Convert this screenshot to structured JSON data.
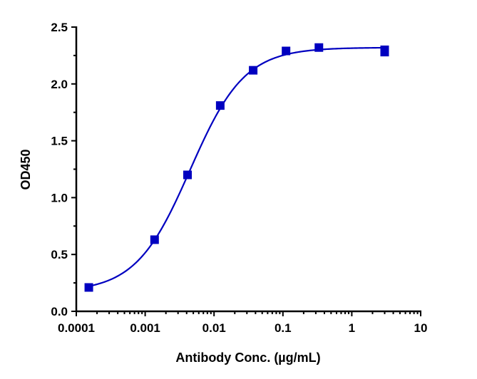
{
  "chart_data": {
    "type": "scatter",
    "title": "",
    "xlabel": "Antibody Conc. (µg/mL)",
    "ylabel": "OD450",
    "xscale": "log",
    "xlim": [
      0.0001,
      10
    ],
    "ylim": [
      0,
      2.5
    ],
    "xticks": [
      "0.0001",
      "0.001",
      "0.01",
      "0.1",
      "1",
      "10"
    ],
    "yticks": [
      "0.0",
      "0.5",
      "1.0",
      "1.5",
      "2.0",
      "2.5"
    ],
    "grid": false,
    "legend": "none",
    "color": "#0000C0",
    "marker": "square",
    "points": [
      {
        "x": 0.000152,
        "y": 0.21
      },
      {
        "x": 0.00137,
        "y": 0.63
      },
      {
        "x": 0.00412,
        "y": 1.2
      },
      {
        "x": 0.0123,
        "y": 1.81
      },
      {
        "x": 0.037,
        "y": 2.12
      },
      {
        "x": 0.111,
        "y": 2.29
      },
      {
        "x": 0.333,
        "y": 2.32
      },
      {
        "x": 3,
        "y": 2.3
      },
      {
        "x": 3,
        "y": 2.28
      }
    ],
    "fit": {
      "model": "4PL",
      "bottom": 0.17,
      "top": 2.32,
      "ec50": 0.0045,
      "hill": 1.1
    }
  }
}
